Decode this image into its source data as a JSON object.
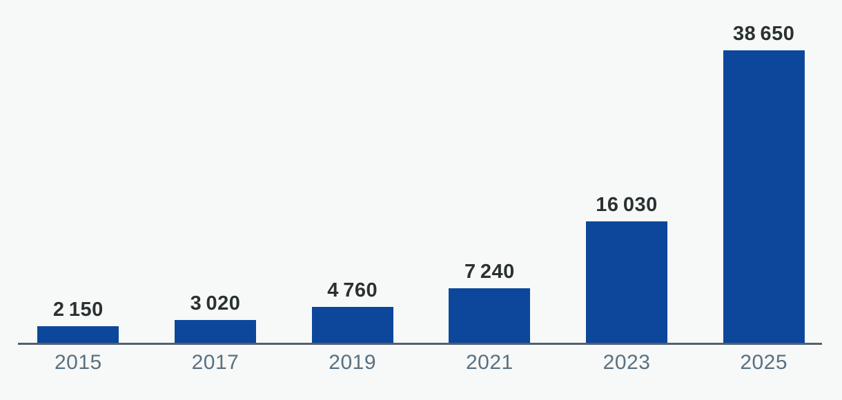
{
  "chart_data": {
    "type": "bar",
    "title": "",
    "xlabel": "",
    "ylabel": "",
    "categories": [
      "2015",
      "2017",
      "2019",
      "2021",
      "2023",
      "2025"
    ],
    "values": [
      2150,
      3020,
      4760,
      7240,
      16030,
      38650
    ],
    "value_labels": [
      "2 150",
      "3 020",
      "4 760",
      "7 240",
      "16 030",
      "38 650"
    ],
    "ylim": [
      0,
      38650
    ],
    "grid": false,
    "legend": null,
    "colors": {
      "bar": "#0C479C",
      "value_label": "#2A3132",
      "tick_label": "#587181",
      "axis_line": "#51616E",
      "background": "#F7F8F8"
    }
  }
}
